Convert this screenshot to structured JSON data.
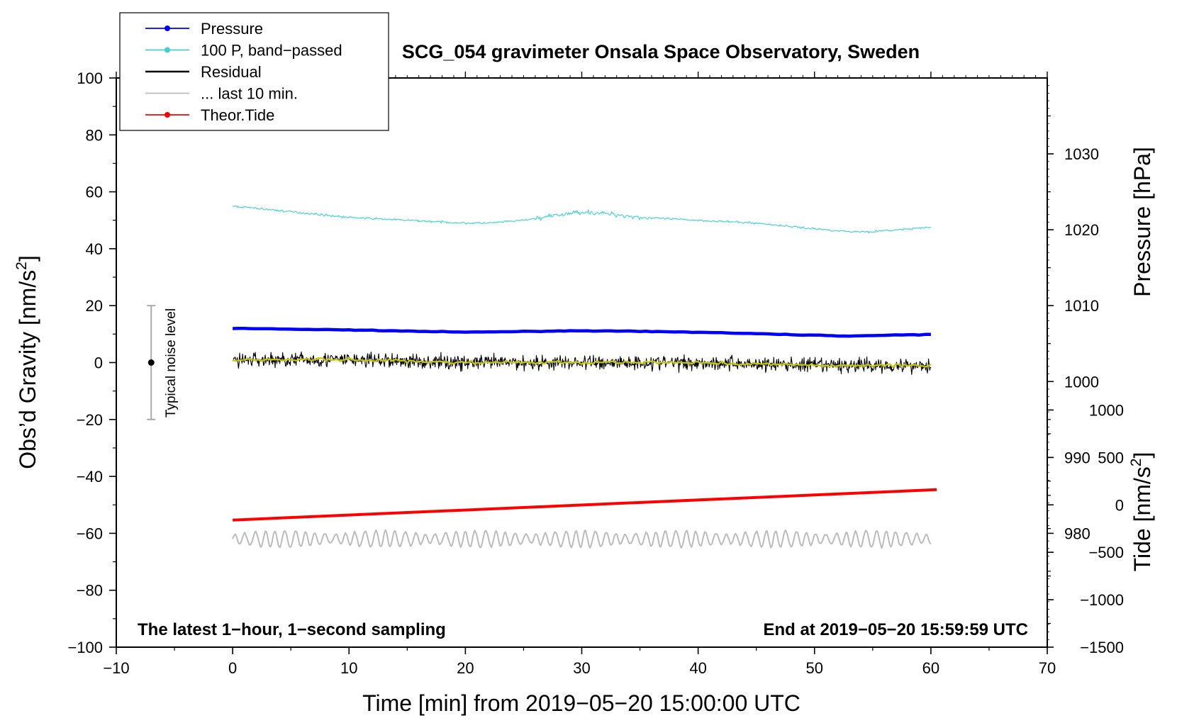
{
  "chart_data": {
    "type": "line",
    "title": "SCG_054 gravimeter Onsala Space Observatory, Sweden",
    "xlabel": "Time [min] from 2019−05−20 15:00:00 UTC",
    "ylabel_left_main": "Obs’d Gravity [nm/s",
    "ylabel_left_sup": "2",
    "ylabel_left_end": "]",
    "ylabel_right_pressure": "Pressure [hPa]",
    "ylabel_right_tide_main": "Tide [nm/s",
    "ylabel_right_tide_sup": "2",
    "ylabel_right_tide_end": "]",
    "xlim": [
      -10,
      70
    ],
    "ylim": [
      -100,
      100
    ],
    "pressure_axis_range": [
      965,
      1040
    ],
    "tide_axis_range": [
      -1500,
      4500
    ],
    "x_ticks": [
      -10,
      0,
      10,
      20,
      30,
      40,
      50,
      60,
      70
    ],
    "x_tick_labels": [
      "−10",
      "0",
      "10",
      "20",
      "30",
      "40",
      "50",
      "60",
      "70"
    ],
    "y_ticks": [
      -100,
      -80,
      -60,
      -40,
      -20,
      0,
      20,
      40,
      60,
      80,
      100
    ],
    "y_tick_labels": [
      "−100",
      "−80",
      "−60",
      "−40",
      "−20",
      "0",
      "20",
      "40",
      "60",
      "80",
      "100"
    ],
    "pressure_ticks": [
      980,
      990,
      1000,
      1010,
      1020,
      1030
    ],
    "pressure_tick_labels": [
      "980",
      "990",
      "1000",
      "1010",
      "1020",
      "1030"
    ],
    "tide_ticks": [
      -1500,
      -1000,
      -500,
      0,
      500,
      1000
    ],
    "tide_tick_labels": [
      "−1500",
      "−1000",
      "−500",
      "0",
      "500",
      "1000"
    ],
    "series": [
      {
        "name": "Pressure",
        "axis": "pressure",
        "color": "#0000ff",
        "x": [
          0,
          10,
          20,
          30,
          40,
          50,
          53,
          60
        ],
        "values": [
          1007.0,
          1006.8,
          1006.5,
          1006.7,
          1006.5,
          1006.1,
          1006.0,
          1006.2
        ]
      },
      {
        "name": "100 P, band−passed",
        "axis": "gravity",
        "color": "#40d0d0",
        "x": [
          0,
          5,
          10,
          15,
          20,
          22,
          25,
          30,
          33,
          35,
          40,
          45,
          50,
          53,
          55,
          60
        ],
        "values": [
          55,
          53,
          51,
          50,
          49,
          49,
          50,
          53,
          52,
          51,
          50,
          49,
          47,
          46,
          46,
          47.5
        ]
      },
      {
        "name": "Residual",
        "axis": "gravity",
        "color": "#000000",
        "x": [
          0,
          10,
          20,
          30,
          40,
          50,
          60
        ],
        "values": [
          1,
          1,
          0,
          0,
          0,
          -1,
          -1
        ]
      },
      {
        "name": "... last 10 min.",
        "axis": "gravity",
        "color": "#bbbbbb",
        "x": [
          0,
          10,
          20,
          30,
          40,
          50,
          60
        ],
        "values": [
          -62,
          -62,
          -62,
          -62,
          -62,
          -62,
          -62
        ]
      },
      {
        "name": "Theor.Tide",
        "axis": "tide",
        "color": "#ff0000",
        "x": [
          0,
          60.5
        ],
        "values": [
          -160,
          160
        ]
      }
    ],
    "legend": {
      "position": "top-left",
      "entries": [
        {
          "label": "Pressure",
          "color": "#0000ff",
          "marker": true
        },
        {
          "label": "100 P, band−passed",
          "color": "#40d0d0",
          "marker": true
        },
        {
          "label": "Residual",
          "color": "#000000",
          "marker": false
        },
        {
          "label": "... last 10 min.",
          "color": "#bbbbbb",
          "marker": false
        },
        {
          "label": "Theor.Tide",
          "color": "#ff0000",
          "marker": true
        }
      ]
    },
    "noise_indicator": {
      "label": "Typical noise level",
      "x": -7,
      "center": 0,
      "low": -20,
      "high": 20
    },
    "annotation_left": "The latest 1−hour, 1−second sampling",
    "annotation_right": "End at 2019−05−20 15:59:59 UTC"
  }
}
